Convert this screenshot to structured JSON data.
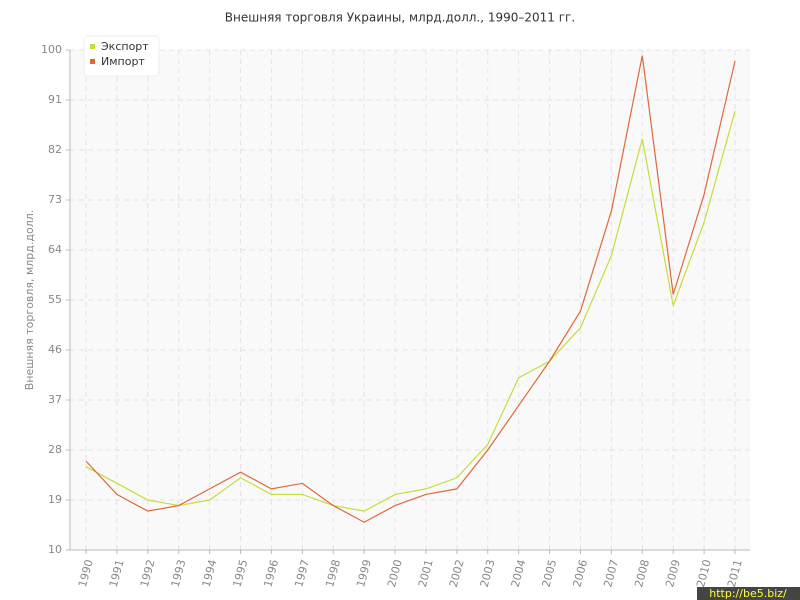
{
  "chart_data": {
    "type": "line",
    "title": "Внешняя торговля Украины, млрд.долл., 1990–2011 гг.",
    "y_label": "Внешняя торговля, млрд.долл.",
    "categories": [
      "1990",
      "1991",
      "1992",
      "1993",
      "1994",
      "1995",
      "1996",
      "1997",
      "1998",
      "1999",
      "2000",
      "2001",
      "2002",
      "2003",
      "2004",
      "2005",
      "2006",
      "2007",
      "2008",
      "2009",
      "2010",
      "2011"
    ],
    "series": [
      {
        "name": "Экспорт",
        "color": "#c6dd3a",
        "values": [
          25,
          22,
          19,
          18,
          19,
          23,
          20,
          20,
          18,
          17,
          20,
          21,
          23,
          29,
          41,
          44,
          50,
          63,
          84,
          54,
          69,
          89
        ]
      },
      {
        "name": "Импорт",
        "color": "#e0683c",
        "values": [
          26,
          20,
          17,
          18,
          21,
          24,
          21,
          22,
          18,
          15,
          18,
          20,
          21,
          28,
          36,
          44,
          53,
          71,
          99,
          56,
          74,
          98
        ]
      }
    ],
    "ylim": [
      10,
      100
    ],
    "yticks": [
      10,
      19,
      28,
      37,
      46,
      55,
      64,
      73,
      82,
      91,
      100
    ],
    "grid": true,
    "legend": "top-left",
    "watermark": "http://be5.biz/"
  }
}
